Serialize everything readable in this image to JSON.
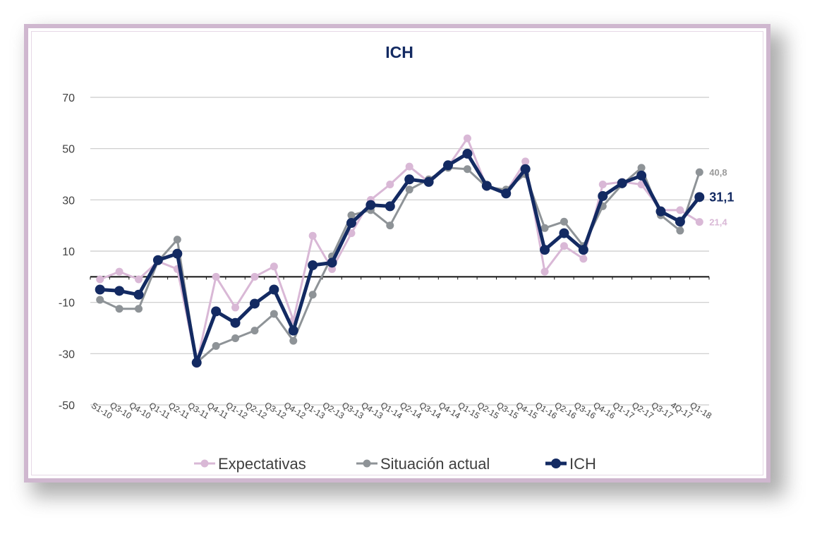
{
  "chart_data": {
    "type": "line",
    "title": "ICH",
    "ylim": [
      -50,
      70
    ],
    "yticks": [
      -50,
      -30,
      -10,
      10,
      30,
      50,
      70
    ],
    "grid": true,
    "reference_line": 0,
    "legend_position": "bottom",
    "categories": [
      "S1-10",
      "Q3-10",
      "Q4-10",
      "Q1-11",
      "Q2-11",
      "Q3-11",
      "Q4-11",
      "Q1-12",
      "Q2-12",
      "Q3-12",
      "Q4-12",
      "Q1-13",
      "Q2-13",
      "Q3-13",
      "Q4-13",
      "Q1-14",
      "Q2-14",
      "Q3-14",
      "Q4-14",
      "Q1-15",
      "Q2-15",
      "Q3-15",
      "Q4-15",
      "Q1-16",
      "Q2-16",
      "Q3-16",
      "Q4-16",
      "Q1-17",
      "Q2-17",
      "Q3-17",
      "4Q-17",
      "Q1-18"
    ],
    "series": [
      {
        "name": "Expectativas",
        "color": "#d9b8d6",
        "values": [
          -1,
          2,
          -1,
          6,
          3,
          -34,
          0,
          -12,
          0,
          4,
          -17,
          16,
          3,
          17,
          30,
          36,
          43,
          37,
          43,
          54,
          35,
          33,
          45,
          2,
          12,
          7,
          36,
          37,
          36,
          26,
          26,
          21.4
        ]
      },
      {
        "name": "Situación actual",
        "color": "#8e9397",
        "values": [
          -9,
          -12.5,
          -12.5,
          6,
          14.5,
          -33.5,
          -27,
          -24,
          -21,
          -14.5,
          -25,
          -7,
          8,
          24,
          26,
          20,
          34,
          38,
          42.5,
          42,
          35,
          34,
          40,
          19,
          21.5,
          12,
          27.5,
          36,
          42.5,
          24,
          18,
          40.8
        ]
      },
      {
        "name": "ICH",
        "color": "#132a62",
        "values": [
          -5,
          -5.5,
          -7,
          6.5,
          9,
          -33.5,
          -13.5,
          -18,
          -10.5,
          -5,
          -21,
          4.5,
          5.5,
          21,
          28,
          27.5,
          38,
          37,
          43.5,
          48,
          35.5,
          32.5,
          42,
          10.5,
          17,
          10.5,
          31.5,
          36.5,
          39.5,
          25.5,
          21.5,
          31.1
        ]
      }
    ],
    "end_labels": [
      {
        "series": "Situación actual",
        "text": "40,8",
        "color": "#9a9a9a"
      },
      {
        "series": "ICH",
        "text": "31,1",
        "color": "#132a62"
      },
      {
        "series": "Expectativas",
        "text": "21,4",
        "color": "#d9b8d6"
      }
    ]
  }
}
